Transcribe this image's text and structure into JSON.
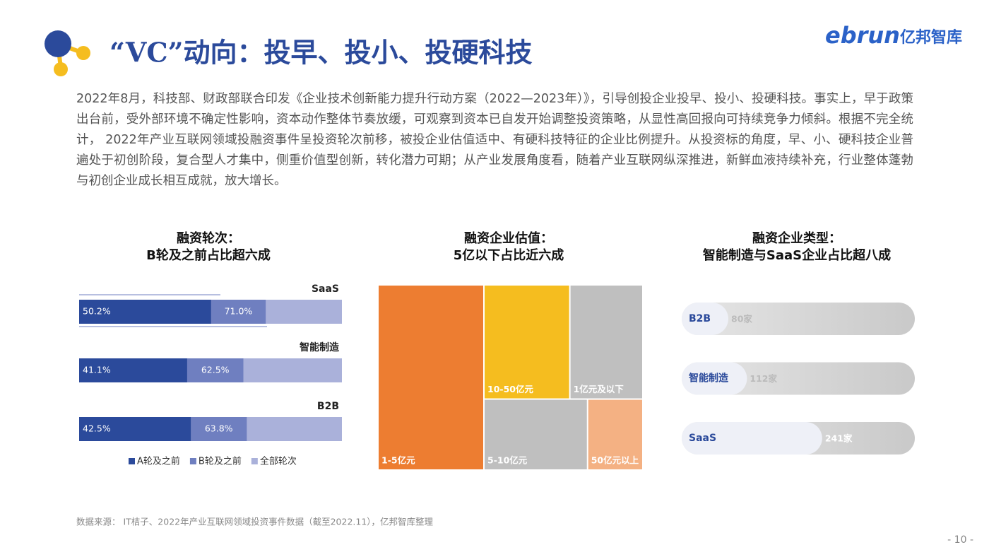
{
  "title": "“VC”动向：投早、投小、投硬科技",
  "logo": {
    "brand": "ebrun",
    "name": "亿邦智库"
  },
  "paragraph": "2022年8月，科技部、财政部联合印发《企业技术创新能力提升行动方案（2022—2023年）》，引导创投企业投早、投小、投硬科技。事实上，早于政策出台前，受外部环境不确定性影响，资本动作整体节奏放缓，可观察到资本已自发开始调整投资策略，从显性高回报向可持续竞争力倾斜。根据不完全统计， 2022年产业互联网领域投融资事件呈投资轮次前移，被投企业估值适中、有硬科技特征的企业比例提升。从投资标的角度，早、小、硬科技企业普遍处于初创阶段，复合型人才集中，侧重价值型创新，转化潜力可期；从产业发展角度看，随着产业互联网纵深推进，新鲜血液持续补充，行业整体蓬勃与初创企业成长相互成就，放大增长。",
  "chart_data": [
    {
      "type": "overlap_bar",
      "title": [
        "融资轮次：",
        "B轮及之前占比超六成"
      ],
      "categories": [
        "SaaS",
        "智能制造",
        "B2B"
      ],
      "xlim": [
        0,
        100
      ],
      "series": [
        {
          "name": "A轮及之前",
          "color": "#2b4a9b",
          "values": [
            50.2,
            41.1,
            42.5
          ],
          "value_labels": [
            "50.2%",
            "41.1%",
            "42.5%"
          ]
        },
        {
          "name": "B轮及之前",
          "color": "#6f7fc0",
          "values": [
            71.0,
            62.5,
            63.8
          ],
          "value_labels": [
            "71.0%",
            "62.5%",
            "63.8%"
          ]
        },
        {
          "name": "全部轮次",
          "color": "#aab1da",
          "values": [
            100,
            100,
            100
          ]
        }
      ]
    },
    {
      "type": "treemap",
      "title": [
        "融资企业估值：",
        "5亿以下占比近六成"
      ],
      "categories": [
        "1-5亿元",
        "10-50亿元",
        "1亿元及以下",
        "5-10亿元",
        "50亿元以上"
      ],
      "values": [
        40,
        20,
        17,
        15,
        8
      ],
      "colors": [
        "#ed7d31",
        "#f5bd1f",
        "#bfbfbf",
        "#bfbfbf",
        "#f4b183"
      ]
    },
    {
      "type": "pill_bar",
      "title": [
        "融资企业类型：",
        "智能制造与SaaS企业占比超八成"
      ],
      "categories": [
        "B2B",
        "智能制造",
        "SaaS"
      ],
      "values": [
        80,
        112,
        241
      ],
      "value_labels": [
        "80家",
        "112家",
        "241家"
      ],
      "xlim": [
        0,
        400
      ],
      "color": "#eef0f7"
    }
  ],
  "source": "数据来源： IT桔子、2022年产业互联网领域投资事件数据（截至2022.11），亿邦智库整理",
  "page_number": "- 10 -"
}
